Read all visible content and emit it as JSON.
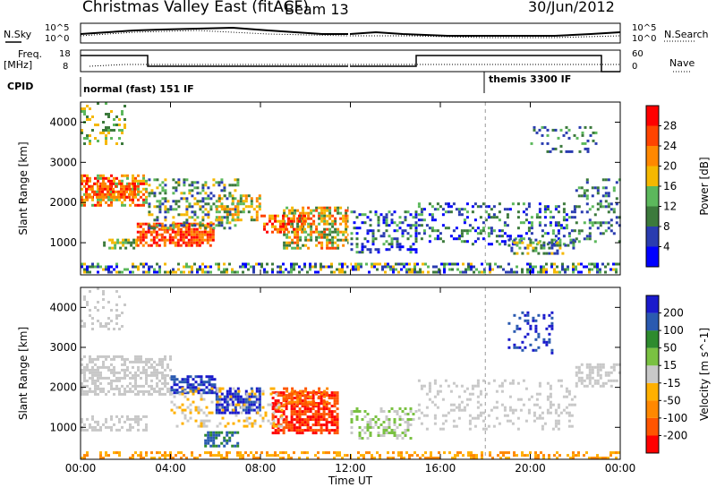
{
  "header": {
    "title": "Christmas Valley East (fitACF)",
    "beam": "Beam 13",
    "date": "30/Jun/2012"
  },
  "panel_labels": {
    "nsky": "N.Sky",
    "nsearch": "N.Search",
    "freq": "Freq.",
    "freq_unit": "[MHz]",
    "nave": "Nave",
    "cpid": "CPID"
  },
  "noise_axis": {
    "left_top": "10^5",
    "left_bottom": "10^0",
    "right_top": "10^5",
    "right_bottom": "10^0"
  },
  "freq_axis": {
    "left_top": "18",
    "left_bottom": "8",
    "right_top": "60",
    "right_bottom": "0"
  },
  "cpid_segments": [
    {
      "label": "normal (fast) 151 IF",
      "start_hour": 0
    },
    {
      "label": "themis 3300 IF",
      "start_hour": 18
    }
  ],
  "colors": {
    "power": [
      "#0000ff",
      "#2a3cb0",
      "#3c7a3c",
      "#5cb85c",
      "#f5b800",
      "#ff8800",
      "#ff4400",
      "#ff0000"
    ],
    "velocity": [
      "#1a1acc",
      "#2a5ab0",
      "#2e8b2e",
      "#7ac142",
      "#c8c8c8",
      "#ffb000",
      "#ff8800",
      "#ff5500",
      "#ff0000"
    ]
  },
  "chart_data": [
    {
      "type": "heatmap",
      "panel": "power",
      "ylabel": "Slant Range [km]",
      "ylim": [
        200,
        4500
      ],
      "yticks": [
        "1000",
        "2000",
        "3000",
        "4000"
      ],
      "colorbar_label": "Power [dB]",
      "colorbar_ticks": [
        "4",
        "8",
        "12",
        "16",
        "20",
        "24",
        "28"
      ]
    },
    {
      "type": "heatmap",
      "panel": "velocity",
      "xlabel": "Time UT",
      "ylabel": "Slant Range [km]",
      "ylim": [
        200,
        4500
      ],
      "xlim_hours": [
        0,
        24
      ],
      "xticks": [
        "00:00",
        "04:00",
        "08:00",
        "12:00",
        "16:00",
        "20:00",
        "00:00"
      ],
      "yticks": [
        "1000",
        "2000",
        "3000",
        "4000"
      ],
      "colorbar_label": "Velocity [m s^-1]",
      "colorbar_ticks": [
        "200",
        "100",
        "50",
        "15",
        "-15",
        "-50",
        "-100",
        "-200"
      ]
    }
  ]
}
